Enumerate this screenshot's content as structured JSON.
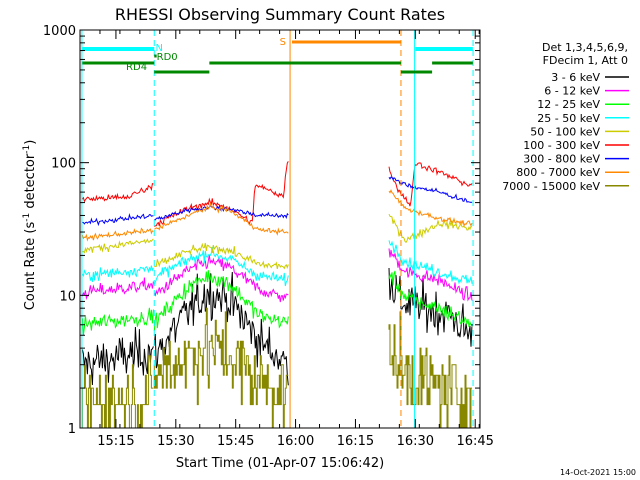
{
  "chart_data": {
    "type": "line",
    "title": "RHESSI Observing Summary Count Rates",
    "xlabel": "Start Time (01-Apr-07 15:06:42)",
    "ylabel": "Count Rate (s",
    "ylabel_sup": "-1",
    "ylabel_tail": " detector",
    "ylabel_end": ")",
    "yscale": "log",
    "ylim": [
      1,
      1000
    ],
    "xlim_minutes": [
      15.1,
      16.77
    ],
    "x_ticks": [
      {
        "label": "15:15",
        "t": 15.25
      },
      {
        "label": "15:30",
        "t": 15.5
      },
      {
        "label": "15:45",
        "t": 15.75
      },
      {
        "label": "16:00",
        "t": 16.0
      },
      {
        "label": "16:15",
        "t": 16.25
      },
      {
        "label": "16:30",
        "t": 16.5
      },
      {
        "label": "16:45",
        "t": 16.75
      }
    ],
    "y_ticks": [
      {
        "label": "1",
        "v": 1
      },
      {
        "label": "10",
        "v": 10
      },
      {
        "label": "100",
        "v": 100
      },
      {
        "label": "1000",
        "v": 1000
      }
    ],
    "legend": {
      "position": "right",
      "header": [
        "Det 1,3,4,5,6,9,",
        "FDecim 1, Att 0"
      ],
      "entries": [
        {
          "label": "3 - 6 keV",
          "color": "#000000"
        },
        {
          "label": "6 - 12 keV",
          "color": "#ff00ff"
        },
        {
          "label": "12 - 25 keV",
          "color": "#00ff00"
        },
        {
          "label": "25 - 50 keV",
          "color": "#00ffff"
        },
        {
          "label": "50 - 100 keV",
          "color": "#cccc00"
        },
        {
          "label": "100 - 300 keV",
          "color": "#ff0000"
        },
        {
          "label": "300 - 800 keV",
          "color": "#0000ff"
        },
        {
          "label": "800 - 7000 keV",
          "color": "#ff8800"
        },
        {
          "label": "7000 - 15000 keV",
          "color": "#888800"
        }
      ]
    },
    "segments": [
      {
        "start": 15.11,
        "end": 15.41
      },
      {
        "start": 15.41,
        "end": 15.97
      },
      {
        "start": 16.39,
        "end": 16.74
      }
    ],
    "series": [
      {
        "name": "3 - 6 keV",
        "color": "#000000",
        "noise": 0.28,
        "seg_profiles": [
          [
            [
              15.11,
              3.0
            ],
            [
              15.41,
              3.8
            ]
          ],
          [
            [
              15.41,
              3.5
            ],
            [
              15.55,
              7.5
            ],
            [
              15.63,
              10.5
            ],
            [
              15.72,
              9.5
            ],
            [
              15.85,
              4.5
            ],
            [
              15.97,
              3.0
            ]
          ],
          [
            [
              16.39,
              14
            ],
            [
              16.44,
              9
            ],
            [
              16.55,
              8
            ],
            [
              16.65,
              7
            ],
            [
              16.74,
              4.8
            ]
          ]
        ]
      },
      {
        "name": "6 - 12 keV",
        "color": "#ff00ff",
        "noise": 0.08,
        "seg_profiles": [
          [
            [
              15.11,
              10.5
            ],
            [
              15.41,
              12.0
            ]
          ],
          [
            [
              15.41,
              10.0
            ],
            [
              15.55,
              15.5
            ],
            [
              15.64,
              18.0
            ],
            [
              15.72,
              16.5
            ],
            [
              15.85,
              11.0
            ],
            [
              15.97,
              9.5
            ]
          ],
          [
            [
              16.39,
              22
            ],
            [
              16.46,
              15
            ],
            [
              16.6,
              13
            ],
            [
              16.74,
              9.5
            ]
          ]
        ]
      },
      {
        "name": "12 - 25 keV",
        "color": "#00ff00",
        "noise": 0.1,
        "seg_profiles": [
          [
            [
              15.11,
              6.0
            ],
            [
              15.41,
              7.0
            ]
          ],
          [
            [
              15.41,
              6.2
            ],
            [
              15.55,
              11.5
            ],
            [
              15.64,
              14.0
            ],
            [
              15.72,
              12.5
            ],
            [
              15.85,
              7.0
            ],
            [
              15.97,
              6.2
            ]
          ],
          [
            [
              16.39,
              15
            ],
            [
              16.46,
              9.5
            ],
            [
              16.6,
              8.0
            ],
            [
              16.74,
              6.0
            ]
          ]
        ]
      },
      {
        "name": "25 - 50 keV",
        "color": "#00ffff",
        "noise": 0.07,
        "seg_profiles": [
          [
            [
              15.11,
              14.0
            ],
            [
              15.41,
              16.0
            ]
          ],
          [
            [
              15.41,
              13.5
            ],
            [
              15.55,
              18.5
            ],
            [
              15.64,
              21.0
            ],
            [
              15.72,
              19.0
            ],
            [
              15.85,
              14.0
            ],
            [
              15.97,
              13.0
            ]
          ],
          [
            [
              16.39,
              26
            ],
            [
              16.46,
              18
            ],
            [
              16.6,
              15
            ],
            [
              16.74,
              12.5
            ]
          ]
        ]
      },
      {
        "name": "50 - 100 keV",
        "color": "#cccc00",
        "noise": 0.05,
        "seg_profiles": [
          [
            [
              15.11,
              22.0
            ],
            [
              15.41,
              26.0
            ]
          ],
          [
            [
              15.41,
              16.5
            ],
            [
              15.55,
              21.5
            ],
            [
              15.64,
              23.0
            ],
            [
              15.72,
              22.0
            ],
            [
              15.85,
              17.0
            ],
            [
              15.97,
              16.5
            ]
          ],
          [
            [
              16.39,
              40
            ],
            [
              16.46,
              26
            ],
            [
              16.6,
              35
            ],
            [
              16.74,
              32
            ]
          ]
        ]
      },
      {
        "name": "100 - 300 keV",
        "color": "#ff0000",
        "noise": 0.04,
        "seg_profiles": [
          [
            [
              15.11,
              53
            ],
            [
              15.3,
              55
            ],
            [
              15.41,
              68
            ]
          ],
          [
            [
              15.41,
              34
            ],
            [
              15.55,
              45
            ],
            [
              15.64,
              50
            ],
            [
              15.72,
              46
            ],
            [
              15.82,
              35
            ],
            [
              15.83,
              68
            ],
            [
              15.95,
              56
            ],
            [
              15.965,
              105
            ]
          ],
          [
            [
              16.39,
              90
            ],
            [
              16.43,
              62
            ],
            [
              16.48,
              48
            ],
            [
              16.5,
              100
            ],
            [
              16.6,
              85
            ],
            [
              16.74,
              66
            ]
          ]
        ]
      },
      {
        "name": "300 - 800 keV",
        "color": "#0000ff",
        "noise": 0.03,
        "seg_profiles": [
          [
            [
              15.11,
              35
            ],
            [
              15.41,
              40
            ]
          ],
          [
            [
              15.41,
              37
            ],
            [
              15.55,
              44
            ],
            [
              15.64,
              46
            ],
            [
              15.72,
              45
            ],
            [
              15.85,
              40
            ],
            [
              15.97,
              40
            ]
          ],
          [
            [
              16.39,
              78
            ],
            [
              16.46,
              68
            ],
            [
              16.6,
              60
            ],
            [
              16.74,
              50
            ]
          ]
        ]
      },
      {
        "name": "800 - 7000 keV",
        "color": "#ff8800",
        "noise": 0.03,
        "seg_profiles": [
          [
            [
              15.11,
              27
            ],
            [
              15.41,
              31
            ]
          ],
          [
            [
              15.41,
              31
            ],
            [
              15.55,
              40
            ],
            [
              15.64,
              46
            ],
            [
              15.72,
              44
            ],
            [
              15.85,
              31
            ],
            [
              15.97,
              30
            ]
          ],
          [
            [
              16.39,
              62
            ],
            [
              16.46,
              45
            ],
            [
              16.6,
              38
            ],
            [
              16.74,
              34
            ]
          ]
        ]
      },
      {
        "name": "7000 - 15000 keV",
        "color": "#888800",
        "noise": 0.45,
        "quantized": true,
        "seg_profiles": [
          [
            [
              15.11,
              1.6
            ],
            [
              15.41,
              1.8
            ]
          ],
          [
            [
              15.41,
              2.5
            ],
            [
              15.55,
              3.6
            ],
            [
              15.64,
              4.0
            ],
            [
              15.72,
              3.6
            ],
            [
              15.85,
              2.2
            ],
            [
              15.97,
              2.0
            ]
          ],
          [
            [
              16.39,
              4.0
            ],
            [
              16.46,
              2.6
            ],
            [
              16.6,
              2.0
            ],
            [
              16.74,
              1.7
            ]
          ]
        ]
      }
    ],
    "flag_bars": [
      {
        "label": "N",
        "color": "#00ffff",
        "level": 1,
        "ranges": [
          [
            15.11,
            15.41
          ],
          [
            16.5,
            16.74
          ]
        ]
      },
      {
        "label": "RD0",
        "color": "#008800",
        "level": 2,
        "ranges": [
          [
            15.41,
            15.42
          ]
        ]
      },
      {
        "label": "RD4",
        "color": "#008800",
        "level": 3,
        "ranges": [
          [
            15.11,
            15.41
          ],
          [
            15.41,
            15.64
          ],
          [
            15.64,
            16.44
          ],
          [
            16.44,
            16.57
          ],
          [
            16.57,
            16.74
          ]
        ]
      },
      {
        "label": "S",
        "color": "#ff8800",
        "level": 0,
        "ranges": [
          [
            15.985,
            16.44
          ]
        ]
      }
    ],
    "vertical_markers": [
      {
        "t": 15.108,
        "color": "#00ffff",
        "style": "solid"
      },
      {
        "t": 15.41,
        "color": "#00ffff",
        "style": "dashed"
      },
      {
        "t": 15.977,
        "color": "#ff8800",
        "style": "solid"
      },
      {
        "t": 16.44,
        "color": "#ff8800",
        "style": "dashed"
      },
      {
        "t": 16.497,
        "color": "#00ffff",
        "style": "solid"
      },
      {
        "t": 16.741,
        "color": "#00ffff",
        "style": "dashed"
      }
    ]
  },
  "footer_date": "14-Oct-2021 15:00"
}
